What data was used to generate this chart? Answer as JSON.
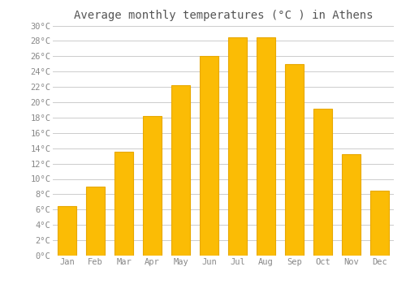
{
  "title": "Average monthly temperatures (°C ) in Athens",
  "months": [
    "Jan",
    "Feb",
    "Mar",
    "Apr",
    "May",
    "Jun",
    "Jul",
    "Aug",
    "Sep",
    "Oct",
    "Nov",
    "Dec"
  ],
  "values": [
    6.5,
    9.0,
    13.5,
    18.2,
    22.2,
    26.0,
    28.5,
    28.5,
    25.0,
    19.2,
    13.2,
    8.5
  ],
  "bar_color": "#FBBC05",
  "bar_edge_color": "#E8A800",
  "background_color": "#FFFFFF",
  "grid_color": "#CCCCCC",
  "text_color": "#888888",
  "title_color": "#555555",
  "ylim": [
    0,
    30
  ],
  "title_fontsize": 10,
  "tick_fontsize": 7.5,
  "bar_width": 0.65
}
